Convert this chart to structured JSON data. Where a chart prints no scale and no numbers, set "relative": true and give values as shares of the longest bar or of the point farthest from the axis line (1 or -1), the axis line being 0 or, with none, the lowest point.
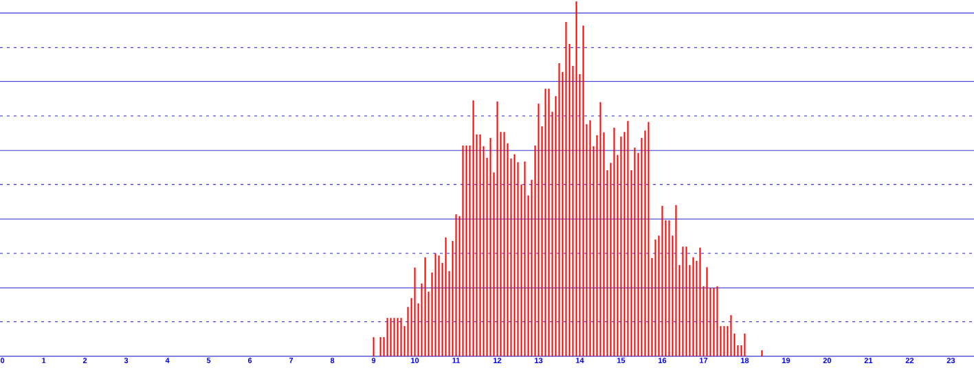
{
  "chart_data": {
    "type": "bar",
    "relative": true,
    "color": "#ff0000",
    "tick_labels": "x",
    "xlim": [
      -0.06,
      23.56
    ],
    "xticks": [
      0,
      1,
      2,
      3,
      4,
      5,
      6,
      7,
      8,
      9,
      10,
      11,
      12,
      13,
      14,
      15,
      16,
      17,
      18,
      19,
      20,
      21,
      22,
      23
    ],
    "ref_lines": [
      {
        "axis": "y",
        "value": 0.097,
        "line_style": "dashed",
        "color": "#0000cc"
      },
      {
        "axis": "y",
        "value": 0.193,
        "line_style": "solid",
        "color": "#0000cc"
      },
      {
        "axis": "y",
        "value": 0.29,
        "line_style": "dashed",
        "color": "#0000cc"
      },
      {
        "axis": "y",
        "value": 0.387,
        "line_style": "solid",
        "color": "#0000cc"
      },
      {
        "axis": "y",
        "value": 0.484,
        "line_style": "dashed",
        "color": "#0000cc"
      },
      {
        "axis": "y",
        "value": 0.58,
        "line_style": "solid",
        "color": "#0000cc"
      },
      {
        "axis": "y",
        "value": 0.677,
        "line_style": "dashed",
        "color": "#0000cc"
      },
      {
        "axis": "y",
        "value": 0.774,
        "line_style": "solid",
        "color": "#0000cc"
      },
      {
        "axis": "y",
        "value": 0.87,
        "line_style": "dashed",
        "color": "#0000cc"
      },
      {
        "axis": "y",
        "value": 0.967,
        "line_style": "solid",
        "color": "#0000cc"
      }
    ],
    "x": [
      9,
      9.1667,
      9.25,
      9.3333,
      9.4167,
      9.5,
      9.5833,
      9.6667,
      9.75,
      9.8333,
      9.9167,
      10,
      10.0833,
      10.1667,
      10.25,
      10.3333,
      10.4167,
      10.5,
      10.5833,
      10.6667,
      10.75,
      10.8333,
      10.9167,
      11,
      11.0833,
      11.1667,
      11.25,
      11.3333,
      11.4167,
      11.5,
      11.5833,
      11.6667,
      11.75,
      11.8333,
      11.9167,
      12,
      12.0833,
      12.1667,
      12.25,
      12.3333,
      12.4167,
      12.5,
      12.5833,
      12.6667,
      12.75,
      12.8333,
      12.9167,
      13,
      13.0833,
      13.1667,
      13.25,
      13.3333,
      13.4167,
      13.5,
      13.5833,
      13.6667,
      13.75,
      13.8333,
      13.9167,
      14,
      14.0833,
      14.1667,
      14.25,
      14.3333,
      14.4167,
      14.5,
      14.5833,
      14.6667,
      14.75,
      14.8333,
      14.9167,
      15,
      15.0833,
      15.1667,
      15.25,
      15.3333,
      15.4167,
      15.5,
      15.5833,
      15.6667,
      15.75,
      15.8333,
      15.9167,
      16,
      16.0833,
      16.1667,
      16.25,
      16.3333,
      16.4167,
      16.5,
      16.5833,
      16.6667,
      16.75,
      16.8333,
      16.9167,
      17,
      17.0833,
      17.1667,
      17.25,
      17.3333,
      17.4167,
      17.5,
      17.5833,
      17.6667,
      17.75,
      17.8333,
      17.9167,
      18,
      18.4167
    ],
    "values": [
      0.054,
      0.054,
      0.054,
      0.108,
      0.108,
      0.108,
      0.108,
      0.108,
      0.085,
      0.139,
      0.164,
      0.25,
      0.149,
      0.205,
      0.279,
      0.182,
      0.236,
      0.29,
      0.284,
      0.263,
      0.335,
      0.24,
      0.325,
      0.4,
      0.395,
      0.594,
      0.594,
      0.594,
      0.721,
      0.625,
      0.625,
      0.592,
      0.559,
      0.615,
      0.518,
      0.718,
      0.632,
      0.632,
      0.6,
      0.557,
      0.569,
      0.547,
      0.484,
      0.549,
      0.453,
      0.497,
      0.594,
      0.712,
      0.648,
      0.754,
      0.754,
      0.689,
      0.733,
      0.826,
      0.801,
      0.942,
      0.88,
      0.818,
      1,
      0.795,
      0.932,
      0.654,
      0.665,
      0.592,
      0.623,
      0.716,
      0.631,
      0.524,
      0.545,
      0.644,
      0.567,
      0.619,
      0.632,
      0.663,
      0.524,
      0.588,
      0.573,
      0.615,
      0.636,
      0.66,
      0.277,
      0.329,
      0.34,
      0.424,
      0.383,
      0.383,
      0.34,
      0.426,
      0.257,
      0.309,
      0.309,
      0.257,
      0.279,
      0.269,
      0.306,
      0.197,
      0.251,
      0.193,
      0.193,
      0.197,
      0.085,
      0.085,
      0.085,
      0.116,
      0.064,
      0.031,
      0.031,
      0.064,
      0.017
    ]
  }
}
